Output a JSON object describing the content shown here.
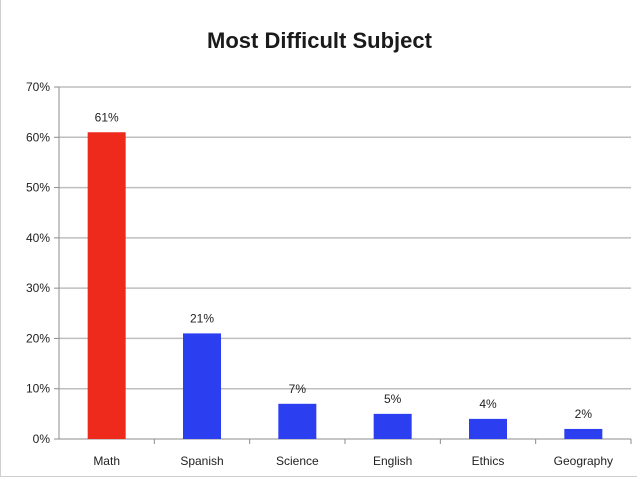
{
  "chart_data": {
    "type": "bar",
    "title": "Most Difficult Subject",
    "xlabel": "",
    "ylabel": "",
    "categories": [
      "Math",
      "Spanish",
      "Science",
      "English",
      "Ethics",
      "Geography"
    ],
    "values": [
      61,
      21,
      7,
      5,
      4,
      2
    ],
    "data_labels": [
      "61%",
      "21%",
      "7%",
      "5%",
      "4%",
      "2%"
    ],
    "ylim": [
      0,
      70
    ],
    "y_ticks": [
      0,
      10,
      20,
      30,
      40,
      50,
      60,
      70
    ],
    "y_tick_labels": [
      "0%",
      "10%",
      "20%",
      "30%",
      "40%",
      "50%",
      "60%",
      "70%"
    ],
    "grid": true,
    "legend": "none",
    "colors": {
      "highlight": "#ee2a1d",
      "default": "#2b3ef0",
      "grid": "#bfbfbf",
      "axis": "#8c8c8c"
    }
  }
}
